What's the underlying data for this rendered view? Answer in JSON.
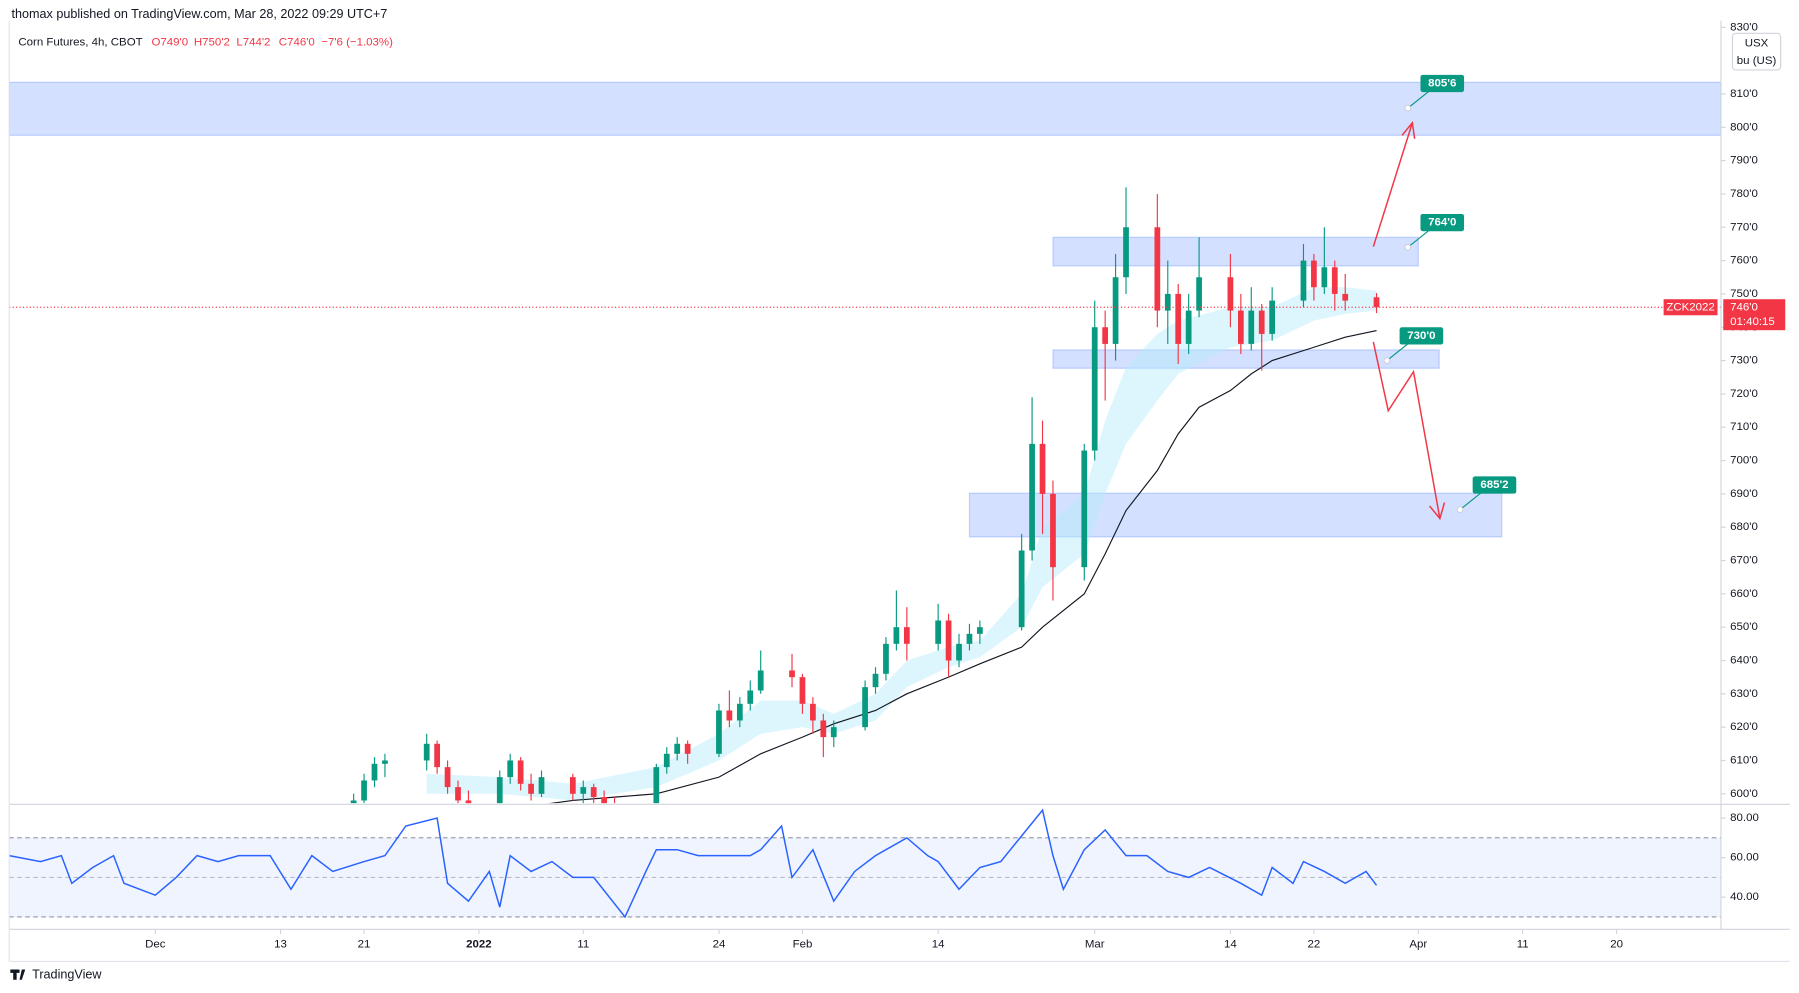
{
  "chart_data": {
    "type": "candlestick",
    "published": "thomax published on TradingView.com, Mar 28, 2022 09:29 UTC+7",
    "title": "Corn Futures, 4h, CBOT",
    "ohlc_labels": [
      "O749'0",
      "H750'2",
      "L744'2",
      "C746'0"
    ],
    "change_label": "−7'6 (−1.03%)",
    "currency": "USX",
    "unit": "bu (US)",
    "brand": "TradingView",
    "up_color": "#089981",
    "down_color": "#f23645",
    "x": [
      "2021-12-20",
      "2021-12-21",
      "2021-12-22",
      "2021-12-23",
      "2021-12-27",
      "2021-12-28",
      "2021-12-29",
      "2021-12-30",
      "2021-12-31",
      "2022-01-03",
      "2022-01-04",
      "2022-01-05",
      "2022-01-06",
      "2022-01-07",
      "2022-01-10",
      "2022-01-11",
      "2022-01-12",
      "2022-01-13",
      "2022-01-14",
      "2022-01-18",
      "2022-01-19",
      "2022-01-20",
      "2022-01-21",
      "2022-01-24",
      "2022-01-25",
      "2022-01-26",
      "2022-01-27",
      "2022-01-28",
      "2022-01-31",
      "2022-02-01",
      "2022-02-02",
      "2022-02-03",
      "2022-02-04",
      "2022-02-07",
      "2022-02-08",
      "2022-02-09",
      "2022-02-10",
      "2022-02-11",
      "2022-02-14",
      "2022-02-15",
      "2022-02-16",
      "2022-02-17",
      "2022-02-18",
      "2022-02-22",
      "2022-02-23",
      "2022-02-24",
      "2022-02-25",
      "2022-02-28",
      "2022-03-01",
      "2022-03-02",
      "2022-03-03",
      "2022-03-04",
      "2022-03-07",
      "2022-03-08",
      "2022-03-09",
      "2022-03-10",
      "2022-03-11",
      "2022-03-14",
      "2022-03-15",
      "2022-03-16",
      "2022-03-17",
      "2022-03-18",
      "2022-03-21",
      "2022-03-22",
      "2022-03-23",
      "2022-03-24",
      "2022-03-25",
      "2022-03-28"
    ],
    "candles": [
      [
        596,
        600,
        592,
        598
      ],
      [
        598,
        606,
        597,
        604
      ],
      [
        604,
        611,
        602,
        609
      ],
      [
        609,
        612,
        605,
        610
      ],
      [
        610,
        618,
        607,
        615
      ],
      [
        615,
        616,
        606,
        608
      ],
      [
        608,
        610,
        600,
        602
      ],
      [
        602,
        604,
        595,
        598
      ],
      [
        598,
        601,
        594,
        596
      ],
      [
        596,
        607,
        595,
        605
      ],
      [
        605,
        612,
        603,
        610
      ],
      [
        610,
        611,
        601,
        603
      ],
      [
        603,
        606,
        598,
        600
      ],
      [
        600,
        607,
        599,
        605
      ],
      [
        605,
        606,
        598,
        600
      ],
      [
        600,
        604,
        597,
        602
      ],
      [
        602,
        603,
        597,
        599
      ],
      [
        599,
        601,
        595,
        597
      ],
      [
        597,
        599,
        592,
        596
      ],
      [
        596,
        609,
        595,
        608
      ],
      [
        608,
        614,
        606,
        612
      ],
      [
        612,
        617,
        610,
        615
      ],
      [
        615,
        616,
        609,
        612
      ],
      [
        612,
        627,
        611,
        625
      ],
      [
        625,
        631,
        620,
        622
      ],
      [
        622,
        629,
        620,
        627
      ],
      [
        627,
        634,
        625,
        631
      ],
      [
        631,
        643,
        630,
        637
      ],
      [
        637,
        642,
        632,
        635
      ],
      [
        635,
        636,
        624,
        627
      ],
      [
        627,
        629,
        618,
        622
      ],
      [
        622,
        624,
        611,
        617
      ],
      [
        617,
        622,
        614,
        620
      ],
      [
        620,
        634,
        619,
        632
      ],
      [
        632,
        638,
        630,
        636
      ],
      [
        636,
        647,
        634,
        645
      ],
      [
        645,
        661,
        643,
        650
      ],
      [
        650,
        656,
        640,
        645
      ],
      [
        645,
        657,
        643,
        652
      ],
      [
        652,
        654,
        635,
        640
      ],
      [
        640,
        648,
        638,
        645
      ],
      [
        645,
        651,
        643,
        648
      ],
      [
        648,
        652,
        645,
        650
      ],
      [
        650,
        678,
        649,
        673
      ],
      [
        673,
        719,
        670,
        705
      ],
      [
        705,
        712,
        678,
        690
      ],
      [
        690,
        694,
        658,
        668
      ],
      [
        668,
        705,
        664,
        703
      ],
      [
        703,
        748,
        700,
        740
      ],
      [
        740,
        745,
        718,
        735
      ],
      [
        735,
        762,
        730,
        755
      ],
      [
        755,
        782,
        750,
        770
      ],
      [
        770,
        780,
        740,
        745
      ],
      [
        745,
        760,
        735,
        750
      ],
      [
        750,
        753,
        729,
        735
      ],
      [
        735,
        750,
        732,
        745
      ],
      [
        745,
        767,
        743,
        755
      ],
      [
        755,
        762,
        740,
        745
      ],
      [
        745,
        750,
        732,
        735
      ],
      [
        735,
        752,
        733,
        745
      ],
      [
        745,
        747,
        727,
        738
      ],
      [
        738,
        752,
        736,
        748
      ],
      [
        748,
        765,
        746,
        760
      ],
      [
        760,
        762,
        748,
        752
      ],
      [
        752,
        770,
        750,
        758
      ],
      [
        758,
        760,
        745,
        750
      ],
      [
        750,
        756,
        745,
        748
      ],
      [
        749,
        750.25,
        744.25,
        746
      ]
    ],
    "ma": {
      "color": "#131722",
      "x": [
        "2022-01-03",
        "2022-01-10",
        "2022-01-14",
        "2022-01-18",
        "2022-01-24",
        "2022-01-28",
        "2022-02-01",
        "2022-02-04",
        "2022-02-08",
        "2022-02-11",
        "2022-02-15",
        "2022-02-18",
        "2022-02-22",
        "2022-02-24",
        "2022-02-28",
        "2022-03-02",
        "2022-03-04",
        "2022-03-07",
        "2022-03-09",
        "2022-03-11",
        "2022-03-14",
        "2022-03-16",
        "2022-03-18",
        "2022-03-22",
        "2022-03-25",
        "2022-03-28"
      ],
      "values": [
        595,
        598,
        599,
        600,
        605,
        612,
        617,
        621,
        625,
        630,
        635,
        639,
        644,
        650,
        660,
        672,
        685,
        697,
        708,
        716,
        721,
        726,
        730,
        734,
        737,
        739
      ]
    },
    "ribbon": {
      "color": "#b3ebfb",
      "x": [
        "2021-12-27",
        "2022-01-03",
        "2022-01-10",
        "2022-01-18",
        "2022-01-24",
        "2022-01-28",
        "2022-02-01",
        "2022-02-04",
        "2022-02-08",
        "2022-02-11",
        "2022-02-15",
        "2022-02-18",
        "2022-02-22",
        "2022-02-24",
        "2022-02-28",
        "2022-03-02",
        "2022-03-04",
        "2022-03-07",
        "2022-03-09",
        "2022-03-14",
        "2022-03-18",
        "2022-03-22",
        "2022-03-25",
        "2022-03-28"
      ],
      "lower": [
        600,
        600,
        598,
        602,
        610,
        618,
        620,
        618,
        622,
        632,
        638,
        641,
        650,
        662,
        672,
        690,
        705,
        718,
        726,
        734,
        736,
        742,
        744,
        745
      ],
      "upper": [
        606,
        605,
        603,
        608,
        618,
        628,
        628,
        624,
        630,
        640,
        644,
        646,
        660,
        680,
        690,
        712,
        728,
        738,
        742,
        746,
        746,
        752,
        752,
        751
      ]
    },
    "zone_color": "#2962ff",
    "zones": [
      {
        "range": [
          797.6,
          813.5
        ]
      },
      {
        "range": [
          758.4,
          767
        ],
        "x": [
          "2022-02-25",
          "2022-04-01"
        ]
      },
      {
        "range": [
          727.7,
          733.2
        ],
        "x": [
          "2022-02-25",
          "2022-04-03"
        ]
      },
      {
        "range": [
          677.1,
          690.2
        ],
        "x": [
          "2022-02-17",
          "2022-04-09"
        ]
      }
    ],
    "annotation_color": "#089981",
    "annotations": [
      {
        "value": 805.75,
        "label": "805'6",
        "x": "2022-03-31"
      },
      {
        "value": 764,
        "label": "764'0",
        "x": "2022-03-31"
      },
      {
        "value": 730,
        "label": "730'0",
        "x": "2022-03-29"
      },
      {
        "value": 685.25,
        "label": "685'2",
        "x": "2022-04-05"
      }
    ],
    "last_price": {
      "symbol": "ZCK2022",
      "value": 746,
      "label": "746'0",
      "countdown": "01:40:15",
      "color": "#f23645"
    },
    "xlim": [
      "2021-11-17",
      "2022-04-30"
    ],
    "xticks": [
      {
        "value": "2021-12-01",
        "label": "Dec"
      },
      {
        "value": "2021-12-13",
        "label": "13"
      },
      {
        "value": "2021-12-21",
        "label": "21"
      },
      {
        "value": "2022-01-01",
        "label": "2022",
        "bold": true
      },
      {
        "value": "2022-01-11",
        "label": "11"
      },
      {
        "value": "2022-01-24",
        "label": "24"
      },
      {
        "value": "2022-02-01",
        "label": "Feb"
      },
      {
        "value": "2022-02-14",
        "label": "14"
      },
      {
        "value": "2022-03-01",
        "label": "Mar"
      },
      {
        "value": "2022-03-14",
        "label": "14"
      },
      {
        "value": "2022-03-22",
        "label": "22"
      },
      {
        "value": "2022-04-01",
        "label": "Apr"
      },
      {
        "value": "2022-04-11",
        "label": "11"
      },
      {
        "value": "2022-04-20",
        "label": "20"
      }
    ],
    "ylim": [
      597.2,
      832
    ],
    "yticks": [
      {
        "value": 600,
        "label": "600'0"
      },
      {
        "value": 610,
        "label": "610'0"
      },
      {
        "value": 620,
        "label": "620'0"
      },
      {
        "value": 630,
        "label": "630'0"
      },
      {
        "value": 640,
        "label": "640'0"
      },
      {
        "value": 650,
        "label": "650'0"
      },
      {
        "value": 660,
        "label": "660'0"
      },
      {
        "value": 670,
        "label": "670'0"
      },
      {
        "value": 680,
        "label": "680'0"
      },
      {
        "value": 690,
        "label": "690'0"
      },
      {
        "value": 700,
        "label": "700'0"
      },
      {
        "value": 710,
        "label": "710'0"
      },
      {
        "value": 720,
        "label": "720'0"
      },
      {
        "value": 730,
        "label": "730'0"
      },
      {
        "value": 740,
        "label": "740'0"
      },
      {
        "value": 750,
        "label": "750'0"
      },
      {
        "value": 760,
        "label": "760'0"
      },
      {
        "value": 770,
        "label": "770'0"
      },
      {
        "value": 780,
        "label": "780'0"
      },
      {
        "value": 790,
        "label": "790'0"
      },
      {
        "value": 800,
        "label": "800'0"
      },
      {
        "value": 810,
        "label": "810'0"
      },
      {
        "value": 830,
        "label": "830'0"
      }
    ],
    "rsi": {
      "color": "#2962ff",
      "band_color": "#2962ff",
      "ylim": [
        24.9,
        86.4
      ],
      "band": [
        30,
        70
      ],
      "mid": 50,
      "yticks": [
        {
          "value": 40,
          "label": "40.00"
        },
        {
          "value": 60,
          "label": "60.00"
        },
        {
          "value": 80,
          "label": "80.00"
        }
      ],
      "x": [
        "2021-11-17",
        "2021-11-20",
        "2021-11-22",
        "2021-11-23",
        "2021-11-25",
        "2021-11-27",
        "2021-11-28",
        "2021-12-01",
        "2021-12-03",
        "2021-12-05",
        "2021-12-07",
        "2021-12-09",
        "2021-12-12",
        "2021-12-14",
        "2021-12-16",
        "2021-12-18",
        "2021-12-21",
        "2021-12-23",
        "2021-12-25",
        "2021-12-28",
        "2021-12-29",
        "2021-12-31",
        "2022-01-02",
        "2022-01-03",
        "2022-01-04",
        "2022-01-06",
        "2022-01-08",
        "2022-01-10",
        "2022-01-12",
        "2022-01-15",
        "2022-01-17",
        "2022-01-18",
        "2022-01-20",
        "2022-01-22",
        "2022-01-25",
        "2022-01-27",
        "2022-01-28",
        "2022-01-30",
        "2022-01-31",
        "2022-02-02",
        "2022-02-04",
        "2022-02-06",
        "2022-02-08",
        "2022-02-11",
        "2022-02-13",
        "2022-02-14",
        "2022-02-16",
        "2022-02-18",
        "2022-02-20",
        "2022-02-22",
        "2022-02-24",
        "2022-02-25",
        "2022-02-26",
        "2022-02-28",
        "2022-03-02",
        "2022-03-04",
        "2022-03-06",
        "2022-03-08",
        "2022-03-10",
        "2022-03-12",
        "2022-03-15",
        "2022-03-17",
        "2022-03-18",
        "2022-03-20",
        "2022-03-21",
        "2022-03-23",
        "2022-03-25",
        "2022-03-27",
        "2022-03-28"
      ],
      "values": [
        61,
        58,
        61,
        47,
        55,
        61,
        47,
        41,
        50,
        61,
        58,
        61,
        61,
        44,
        61,
        53,
        58,
        61,
        76,
        80,
        47,
        38,
        53,
        35,
        61,
        53,
        58,
        50,
        50,
        30,
        53,
        64,
        64,
        61,
        61,
        61,
        64,
        76,
        50,
        64,
        38,
        53,
        61,
        70,
        61,
        58,
        44,
        55,
        58,
        71,
        84,
        61,
        44,
        64,
        74,
        61,
        61,
        53,
        50,
        55,
        47,
        41,
        55,
        47,
        58,
        53,
        47,
        53,
        46
      ]
    }
  }
}
